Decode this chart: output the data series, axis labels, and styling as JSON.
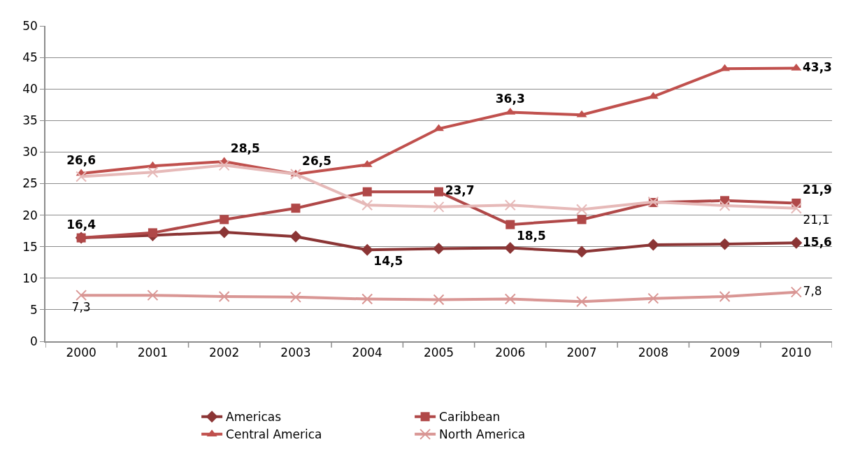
{
  "chart_data": {
    "type": "line",
    "categories": [
      "2000",
      "2001",
      "2002",
      "2003",
      "2004",
      "2005",
      "2006",
      "2007",
      "2008",
      "2009",
      "2010"
    ],
    "series": [
      {
        "name": "Americas",
        "color": "#8b3535",
        "marker": "diamond",
        "values": [
          16.4,
          16.8,
          17.3,
          16.6,
          14.5,
          14.7,
          14.8,
          14.2,
          15.3,
          15.4,
          15.6
        ],
        "value_labels": [
          null,
          null,
          null,
          null,
          "14,5",
          null,
          null,
          null,
          null,
          null,
          "15,6"
        ]
      },
      {
        "name": "Caribbean",
        "color": "#b04848",
        "marker": "square",
        "values": [
          16.4,
          17.2,
          19.3,
          21.1,
          23.7,
          23.7,
          18.5,
          19.3,
          22.0,
          22.3,
          21.9
        ],
        "value_labels": [
          "16,4",
          null,
          null,
          null,
          null,
          "23,7",
          "18,5",
          null,
          null,
          null,
          "21,9"
        ]
      },
      {
        "name": "Central America",
        "color": "#c0504d",
        "marker": "triangle",
        "values": [
          26.6,
          27.8,
          28.5,
          26.5,
          28.0,
          33.7,
          36.3,
          35.9,
          38.8,
          43.2,
          43.3
        ],
        "value_labels": [
          "26,6",
          null,
          "28,5",
          "26,5",
          null,
          null,
          "36,3",
          null,
          null,
          null,
          "43,3"
        ]
      },
      {
        "name": "North America",
        "color": "#d99694",
        "marker": "cross",
        "values": [
          7.3,
          7.3,
          7.1,
          7.0,
          6.7,
          6.6,
          6.7,
          6.3,
          6.8,
          7.1,
          7.8
        ],
        "value_labels": [
          "7,3",
          null,
          null,
          null,
          null,
          null,
          null,
          null,
          null,
          null,
          "7,8"
        ]
      },
      {
        "color": "#e6b9b8",
        "marker": "cross",
        "values": [
          26.1,
          26.8,
          27.9,
          26.5,
          21.6,
          21.3,
          21.6,
          20.9,
          22.1,
          21.5,
          21.1
        ],
        "value_labels": [
          null,
          null,
          null,
          null,
          null,
          null,
          null,
          null,
          null,
          null,
          "21,1"
        ]
      }
    ],
    "ylim": [
      0,
      50
    ],
    "yticks": [
      0,
      5,
      10,
      15,
      20,
      25,
      30,
      35,
      40,
      45,
      50
    ],
    "grid": "y",
    "legend": "bottom"
  }
}
